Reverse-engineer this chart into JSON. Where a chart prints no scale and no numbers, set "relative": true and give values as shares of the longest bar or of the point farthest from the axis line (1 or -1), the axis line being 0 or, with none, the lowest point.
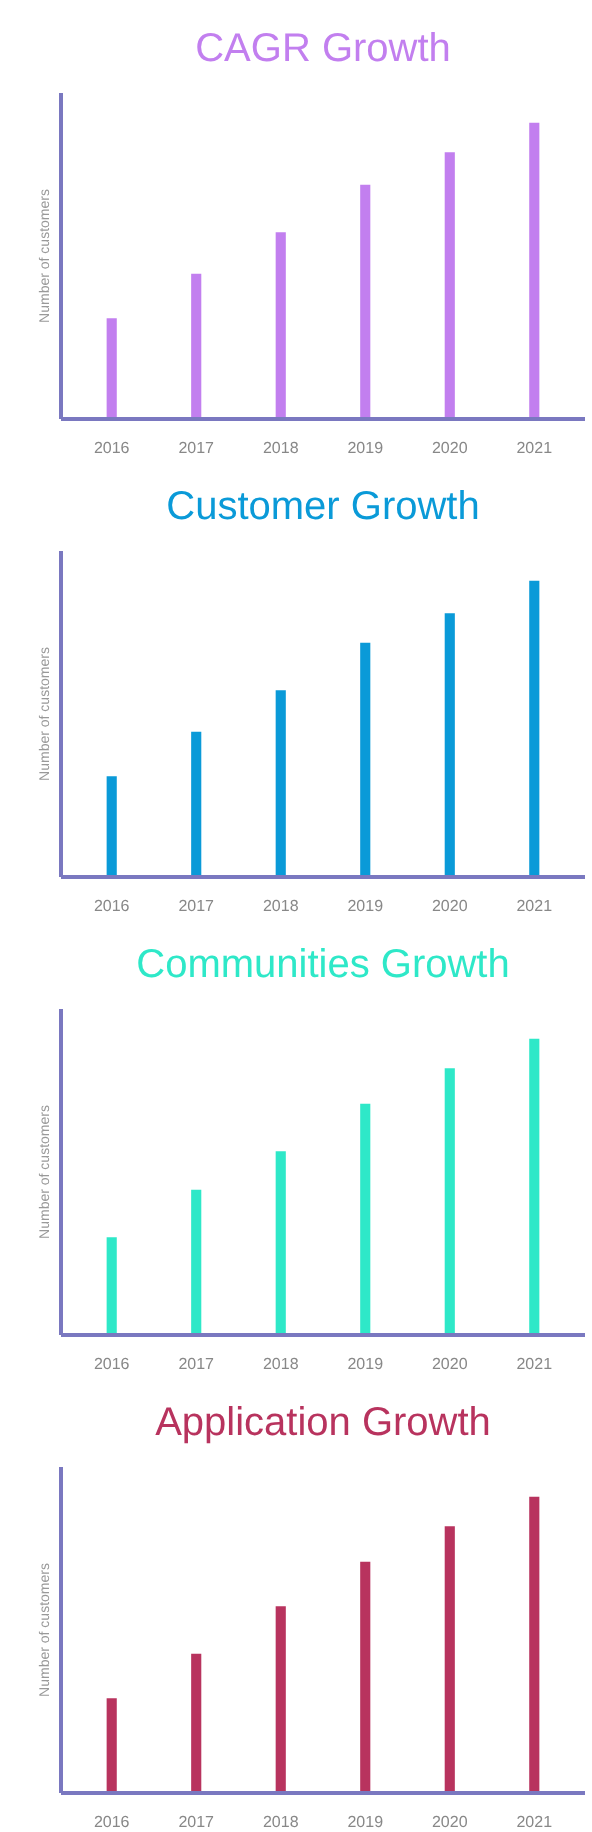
{
  "chart_data": [
    {
      "type": "bar",
      "title": "CAGR Growth",
      "ylabel": "Number of customers",
      "categories": [
        "2016",
        "2017",
        "2018",
        "2019",
        "2020",
        "2021"
      ],
      "relative": true,
      "grid": false,
      "series": [
        {
          "color": "#c27fef",
          "values": [
            0.34,
            0.49,
            0.63,
            0.79,
            0.9,
            1
          ]
        }
      ]
    },
    {
      "type": "bar",
      "title": "Customer Growth",
      "ylabel": "Number of customers",
      "categories": [
        "2016",
        "2017",
        "2018",
        "2019",
        "2020",
        "2021"
      ],
      "relative": true,
      "grid": false,
      "series": [
        {
          "color": "#0a9ad8",
          "values": [
            0.34,
            0.49,
            0.63,
            0.79,
            0.89,
            1
          ]
        }
      ]
    },
    {
      "type": "bar",
      "title": "Communities Growth",
      "ylabel": "Number of customers",
      "categories": [
        "2016",
        "2017",
        "2018",
        "2019",
        "2020",
        "2021"
      ],
      "relative": true,
      "grid": false,
      "series": [
        {
          "color": "#2ee8c8",
          "values": [
            0.33,
            0.49,
            0.62,
            0.78,
            0.9,
            1
          ]
        }
      ]
    },
    {
      "type": "bar",
      "title": "Application Growth",
      "ylabel": "Number of customers",
      "categories": [
        "2016",
        "2017",
        "2018",
        "2019",
        "2020",
        "2021"
      ],
      "relative": true,
      "grid": false,
      "series": [
        {
          "color": "#b8335e",
          "values": [
            0.32,
            0.47,
            0.63,
            0.78,
            0.9,
            1
          ]
        }
      ]
    }
  ]
}
